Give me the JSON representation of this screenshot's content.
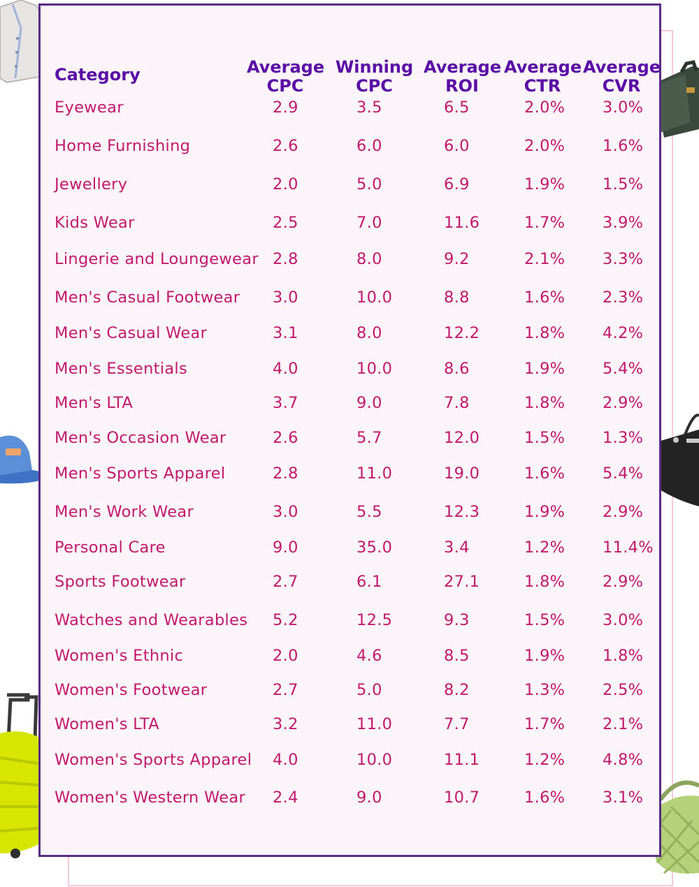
{
  "table": {
    "headers": {
      "category": "Category",
      "avg_cpc": [
        "Average",
        "CPC"
      ],
      "win_cpc": [
        "Winning",
        "CPC"
      ],
      "avg_roi": [
        "Average",
        "ROI"
      ],
      "avg_ctr": [
        "Average",
        "CTR"
      ],
      "avg_cvr": [
        "Average",
        "CVR"
      ]
    },
    "rows": [
      {
        "category": "Eyewear",
        "avg_cpc": "2.9",
        "win_cpc": "3.5",
        "avg_roi": "6.5",
        "avg_ctr": "2.0%",
        "avg_cvr": "3.0%"
      },
      {
        "category": "Home Furnishing",
        "avg_cpc": "2.6",
        "win_cpc": "6.0",
        "avg_roi": "6.0",
        "avg_ctr": "2.0%",
        "avg_cvr": "1.6%"
      },
      {
        "category": "Jewellery",
        "avg_cpc": "2.0",
        "win_cpc": "5.0",
        "avg_roi": "6.9",
        "avg_ctr": "1.9%",
        "avg_cvr": "1.5%"
      },
      {
        "category": "Kids Wear",
        "avg_cpc": "2.5",
        "win_cpc": "7.0",
        "avg_roi": "11.6",
        "avg_ctr": "1.7%",
        "avg_cvr": "3.9%"
      },
      {
        "category": "Lingerie and Loungewear",
        "avg_cpc": "2.8",
        "win_cpc": "8.0",
        "avg_roi": "9.2",
        "avg_ctr": "2.1%",
        "avg_cvr": "3.3%"
      },
      {
        "category": "Men's Casual Footwear",
        "avg_cpc": "3.0",
        "win_cpc": "10.0",
        "avg_roi": "8.8",
        "avg_ctr": "1.6%",
        "avg_cvr": "2.3%"
      },
      {
        "category": "Men's Casual Wear",
        "avg_cpc": "3.1",
        "win_cpc": "8.0",
        "avg_roi": "12.2",
        "avg_ctr": "1.8%",
        "avg_cvr": "4.2%"
      },
      {
        "category": "Men's Essentials",
        "avg_cpc": "4.0",
        "win_cpc": "10.0",
        "avg_roi": "8.6",
        "avg_ctr": "1.9%",
        "avg_cvr": "5.4%"
      },
      {
        "category": "Men's LTA",
        "avg_cpc": "3.7",
        "win_cpc": "9.0",
        "avg_roi": "7.8",
        "avg_ctr": "1.8%",
        "avg_cvr": "2.9%"
      },
      {
        "category": "Men's Occasion Wear",
        "avg_cpc": "2.6",
        "win_cpc": "5.7",
        "avg_roi": "12.0",
        "avg_ctr": "1.5%",
        "avg_cvr": "1.3%"
      },
      {
        "category": "Men's Sports Apparel",
        "avg_cpc": "2.8",
        "win_cpc": "11.0",
        "avg_roi": "19.0",
        "avg_ctr": "1.6%",
        "avg_cvr": "5.4%"
      },
      {
        "category": "Men's Work Wear",
        "avg_cpc": "3.0",
        "win_cpc": "5.5",
        "avg_roi": "12.3",
        "avg_ctr": "1.9%",
        "avg_cvr": "2.9%"
      },
      {
        "category": "Personal Care",
        "avg_cpc": "9.0",
        "win_cpc": "35.0",
        "avg_roi": "3.4",
        "avg_ctr": "1.2%",
        "avg_cvr": "11.4%"
      },
      {
        "category": "Sports Footwear",
        "avg_cpc": "2.7",
        "win_cpc": "6.1",
        "avg_roi": "27.1",
        "avg_ctr": "1.8%",
        "avg_cvr": "2.9%"
      },
      {
        "category": "Watches and Wearables",
        "avg_cpc": "5.2",
        "win_cpc": "12.5",
        "avg_roi": "9.3",
        "avg_ctr": "1.5%",
        "avg_cvr": "3.0%"
      },
      {
        "category": "Women's Ethnic",
        "avg_cpc": "2.0",
        "win_cpc": "4.6",
        "avg_roi": "8.5",
        "avg_ctr": "1.9%",
        "avg_cvr": "1.8%"
      },
      {
        "category": "Women's Footwear",
        "avg_cpc": "2.7",
        "win_cpc": "5.0",
        "avg_roi": "8.2",
        "avg_ctr": "1.3%",
        "avg_cvr": "2.5%"
      },
      {
        "category": "Women's LTA",
        "avg_cpc": "3.2",
        "win_cpc": "11.0",
        "avg_roi": "7.7",
        "avg_ctr": "1.7%",
        "avg_cvr": "2.1%"
      },
      {
        "category": "Women's Sports Apparel",
        "avg_cpc": "4.0",
        "win_cpc": "10.0",
        "avg_roi": "11.1",
        "avg_ctr": "1.2%",
        "avg_cvr": "4.8%"
      },
      {
        "category": "Women's Western Wear",
        "avg_cpc": "2.4",
        "win_cpc": "9.0",
        "avg_roi": "10.7",
        "avg_ctr": "1.6%",
        "avg_cvr": "3.1%"
      }
    ]
  },
  "decorations": [
    "shirt-icon",
    "briefcase-icon",
    "cap-icon",
    "handbag-icon",
    "suitcase-icon",
    "green-bag-icon"
  ],
  "colors": {
    "header_text": "#5b0ea6",
    "cell_text": "#c2186d",
    "card_border": "#5b2a82",
    "card_background": "#fbf5fa",
    "back_frame": "#f6c8d9"
  }
}
